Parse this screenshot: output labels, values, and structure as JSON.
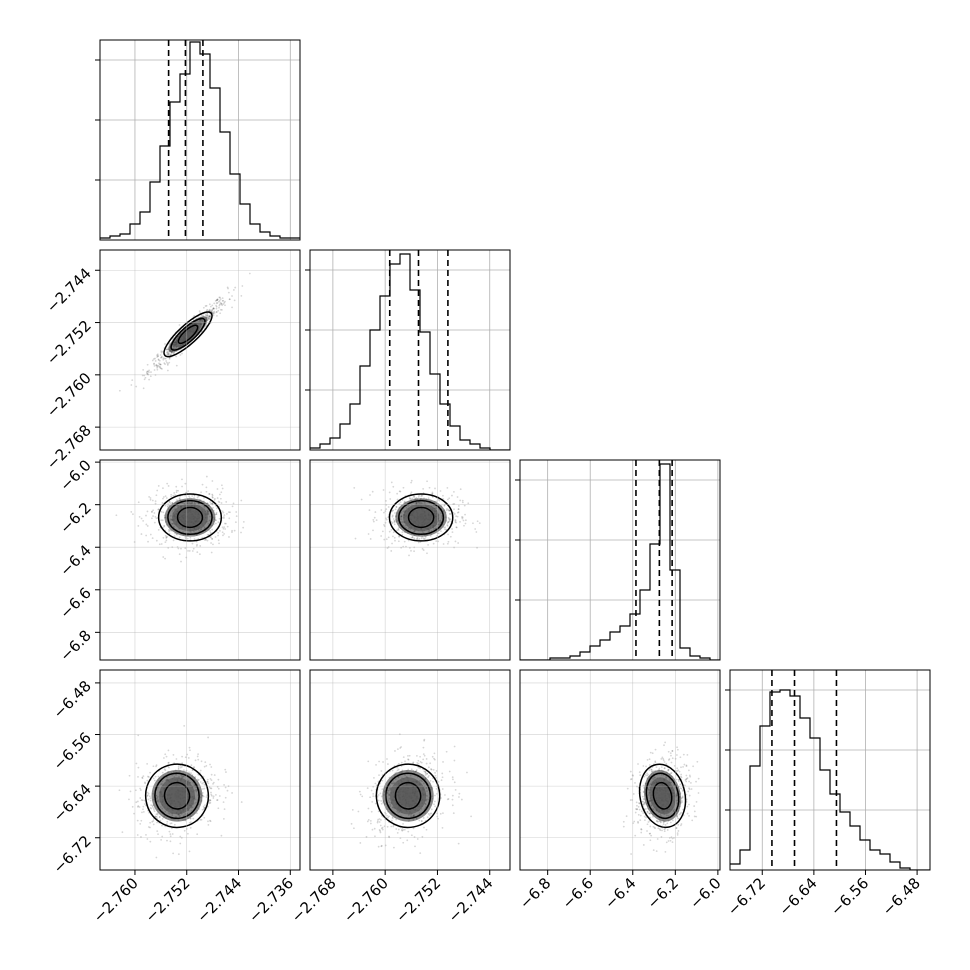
{
  "chart_data": {
    "type": "corner",
    "parameters": [
      {
        "ticks": [
          "−2.760",
          "−2.752",
          "−2.744",
          "−2.736"
        ],
        "tick_values": [
          -2.76,
          -2.752,
          -2.744,
          -2.736
        ],
        "range": [
          -2.7654,
          -2.7345
        ]
      },
      {
        "ticks": [
          "−2.768",
          "−2.760",
          "−2.752",
          "−2.744"
        ],
        "tick_values": [
          -2.768,
          -2.76,
          -2.752,
          -2.744
        ],
        "range": [
          -2.7715,
          -2.7409
        ]
      },
      {
        "ticks": [
          "−6.8",
          "−6.6",
          "−6.4",
          "−6.2",
          "−6.0"
        ],
        "tick_values": [
          -6.8,
          -6.6,
          -6.4,
          -6.2,
          -6.0
        ],
        "range": [
          -6.93,
          -5.99
        ]
      },
      {
        "ticks": [
          "−6.72",
          "−6.64",
          "−6.56",
          "−6.48"
        ],
        "tick_values": [
          -6.72,
          -6.64,
          -6.56,
          -6.48
        ],
        "range": [
          -6.77,
          -6.46
        ]
      }
    ],
    "quantiles": [
      [
        -2.7548,
        -2.7522,
        -2.7495
      ],
      [
        -2.7593,
        -2.7549,
        -2.7504
      ],
      [
        -6.385,
        -6.275,
        -6.215
      ],
      [
        -6.705,
        -6.67,
        -6.605
      ]
    ],
    "histograms": [
      [
        0.01,
        0.02,
        0.03,
        0.08,
        0.14,
        0.29,
        0.47,
        0.69,
        0.83,
        0.99,
        0.93,
        0.76,
        0.54,
        0.33,
        0.18,
        0.08,
        0.04,
        0.02,
        0.01,
        0.01
      ],
      [
        0.01,
        0.03,
        0.06,
        0.13,
        0.23,
        0.42,
        0.6,
        0.77,
        0.93,
        0.98,
        0.8,
        0.59,
        0.38,
        0.23,
        0.12,
        0.05,
        0.03,
        0.01,
        0.0,
        0.0
      ],
      [
        0.0,
        0.0,
        0.0,
        0.01,
        0.01,
        0.02,
        0.04,
        0.07,
        0.1,
        0.14,
        0.17,
        0.23,
        0.35,
        0.58,
        0.98,
        0.45,
        0.06,
        0.02,
        0.01,
        0.0
      ],
      [
        0.03,
        0.1,
        0.52,
        0.72,
        0.89,
        0.9,
        0.87,
        0.76,
        0.66,
        0.5,
        0.38,
        0.29,
        0.22,
        0.15,
        0.1,
        0.08,
        0.04,
        0.01,
        0.0,
        0.0
      ]
    ],
    "pairs": [
      {
        "row": 1,
        "col": 0,
        "center": [
          -2.7518,
          -2.7538
        ],
        "spread": [
          0.0055,
          0.0052
        ],
        "corr": 0.96
      },
      {
        "row": 2,
        "col": 0,
        "center": [
          -2.7515,
          -6.26
        ],
        "spread": [
          0.0055,
          0.12
        ],
        "corr": 0.0
      },
      {
        "row": 2,
        "col": 1,
        "center": [
          -2.7545,
          -6.26
        ],
        "spread": [
          0.0055,
          0.12
        ],
        "corr": 0.0
      },
      {
        "row": 3,
        "col": 0,
        "center": [
          -2.7535,
          -6.655
        ],
        "spread": [
          0.0055,
          0.055
        ],
        "corr": 0.2
      },
      {
        "row": 3,
        "col": 1,
        "center": [
          -2.7565,
          -6.655
        ],
        "spread": [
          0.0055,
          0.055
        ],
        "corr": 0.2
      },
      {
        "row": 3,
        "col": 2,
        "center": [
          -6.26,
          -6.655
        ],
        "spread": [
          0.12,
          0.055
        ],
        "corr": 0.15
      }
    ],
    "grid": true
  }
}
